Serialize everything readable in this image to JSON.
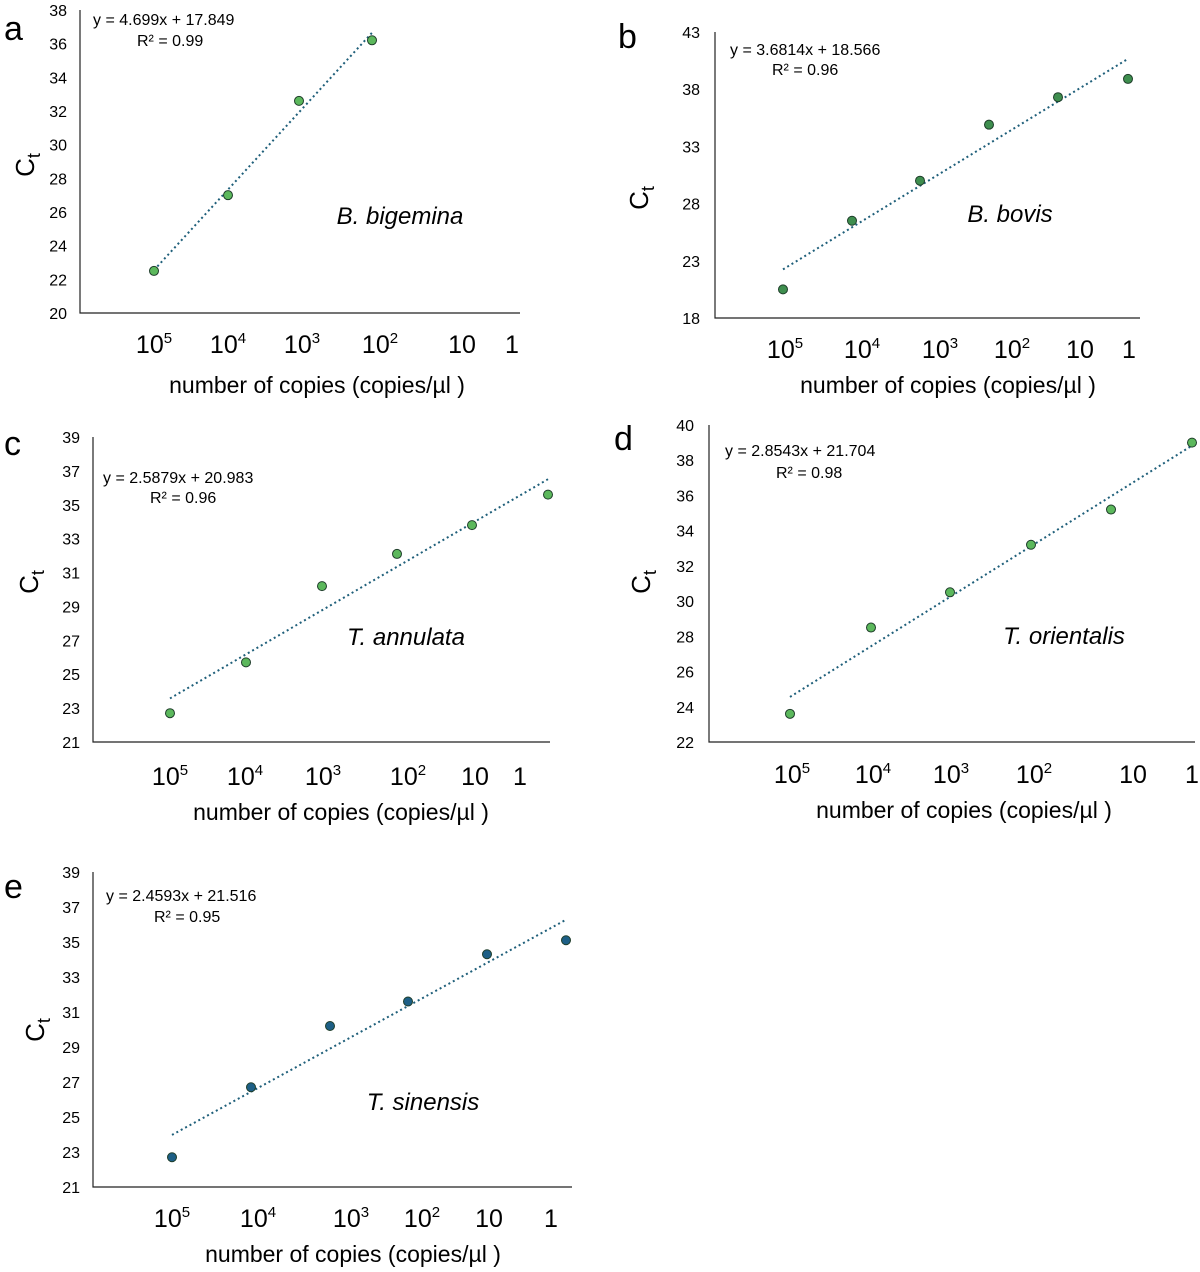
{
  "chart_data": [
    {
      "type": "scatter",
      "panel_label": "a",
      "species": "B. bigemina",
      "xlabel": "number of copies (copies/µl )",
      "ylabel": "C",
      "ylabel_sub": "t",
      "x_tick_labels": [
        {
          "base": "10",
          "exp": "5"
        },
        {
          "base": "10",
          "exp": "4"
        },
        {
          "base": "10",
          "exp": "3"
        },
        {
          "base": "10",
          "exp": "2"
        },
        {
          "base": "10",
          "exp": ""
        },
        {
          "base": "1",
          "exp": ""
        }
      ],
      "ylim": [
        20,
        38
      ],
      "y_ticks": [
        20,
        22,
        24,
        26,
        28,
        30,
        32,
        34,
        36,
        38
      ],
      "x": [
        1,
        2,
        3,
        4
      ],
      "y": [
        22.5,
        27.0,
        32.6,
        36.2
      ],
      "trendline": {
        "slope": 4.699,
        "intercept": 17.849,
        "x_range": [
          1,
          4
        ]
      },
      "equation": "y = 4.699x + 17.849",
      "r2": "R² = 0.99",
      "point_color": "#5cb85c"
    },
    {
      "type": "scatter",
      "panel_label": "b",
      "species": "B. bovis",
      "xlabel": "number of copies (copies/µl )",
      "ylabel": "C",
      "ylabel_sub": "t",
      "x_tick_labels": [
        {
          "base": "10",
          "exp": "5"
        },
        {
          "base": "10",
          "exp": "4"
        },
        {
          "base": "10",
          "exp": "3"
        },
        {
          "base": "10",
          "exp": "2"
        },
        {
          "base": "10",
          "exp": ""
        },
        {
          "base": "1",
          "exp": ""
        }
      ],
      "ylim": [
        18,
        43
      ],
      "y_ticks": [
        18,
        23,
        28,
        33,
        38,
        43
      ],
      "x": [
        1,
        2,
        3,
        4,
        5,
        6
      ],
      "y": [
        20.5,
        26.5,
        30.0,
        34.9,
        37.3,
        38.9
      ],
      "trendline": {
        "slope": 3.6814,
        "intercept": 18.566,
        "x_range": [
          1,
          6
        ]
      },
      "equation": "y = 3.6814x + 18.566",
      "r2": "R² = 0.96",
      "point_color": "#3e8e4e"
    },
    {
      "type": "scatter",
      "panel_label": "c",
      "species": "T. annulata",
      "xlabel": "number of copies (copies/µl )",
      "ylabel": "C",
      "ylabel_sub": "t",
      "x_tick_labels": [
        {
          "base": "10",
          "exp": "5"
        },
        {
          "base": "10",
          "exp": "4"
        },
        {
          "base": "10",
          "exp": "3"
        },
        {
          "base": "10",
          "exp": "2"
        },
        {
          "base": "10",
          "exp": ""
        },
        {
          "base": "1",
          "exp": ""
        }
      ],
      "ylim": [
        21,
        39
      ],
      "y_ticks": [
        21,
        23,
        25,
        27,
        29,
        31,
        33,
        35,
        37,
        39
      ],
      "x": [
        1,
        2,
        3,
        4,
        5,
        6
      ],
      "y": [
        22.7,
        25.7,
        30.2,
        32.1,
        33.8,
        35.6
      ],
      "trendline": {
        "slope": 2.5879,
        "intercept": 20.983,
        "x_range": [
          1,
          6
        ]
      },
      "equation": "y = 2.5879x + 20.983",
      "r2": "R² = 0.96",
      "point_color": "#5cb85c"
    },
    {
      "type": "scatter",
      "panel_label": "d",
      "species": "T. orientalis",
      "xlabel": "number of copies (copies/µl )",
      "ylabel": "C",
      "ylabel_sub": "t",
      "x_tick_labels": [
        {
          "base": "10",
          "exp": "5"
        },
        {
          "base": "10",
          "exp": "4"
        },
        {
          "base": "10",
          "exp": "3"
        },
        {
          "base": "10",
          "exp": "2"
        },
        {
          "base": "10",
          "exp": ""
        },
        {
          "base": "1",
          "exp": ""
        }
      ],
      "ylim": [
        22,
        40
      ],
      "y_ticks": [
        22,
        24,
        26,
        28,
        30,
        32,
        34,
        36,
        38,
        40
      ],
      "x": [
        1,
        2,
        3,
        4,
        5,
        6
      ],
      "y": [
        23.6,
        28.5,
        30.5,
        33.2,
        35.2,
        39.0
      ],
      "trendline": {
        "slope": 2.8543,
        "intercept": 21.704,
        "x_range": [
          1,
          6
        ]
      },
      "equation": "y = 2.8543x + 21.704",
      "r2": "R² = 0.98",
      "point_color": "#5cb85c"
    },
    {
      "type": "scatter",
      "panel_label": "e",
      "species": "T. sinensis",
      "xlabel": "number of copies (copies/µl )",
      "ylabel": "C",
      "ylabel_sub": "t",
      "x_tick_labels": [
        {
          "base": "10",
          "exp": "5"
        },
        {
          "base": "10",
          "exp": "4"
        },
        {
          "base": "10",
          "exp": "3"
        },
        {
          "base": "10",
          "exp": "2"
        },
        {
          "base": "10",
          "exp": ""
        },
        {
          "base": "1",
          "exp": ""
        }
      ],
      "ylim": [
        21,
        39
      ],
      "y_ticks": [
        21,
        23,
        25,
        27,
        29,
        31,
        33,
        35,
        37,
        39
      ],
      "x": [
        1,
        2,
        3,
        4,
        5,
        6
      ],
      "y": [
        22.7,
        26.7,
        30.2,
        31.6,
        34.3,
        35.1
      ],
      "trendline": {
        "slope": 2.4593,
        "intercept": 21.516,
        "x_range": [
          1,
          6
        ]
      },
      "equation": "y = 2.4593x + 21.516",
      "r2": "R² = 0.95",
      "point_color": "#1d5f86"
    }
  ]
}
